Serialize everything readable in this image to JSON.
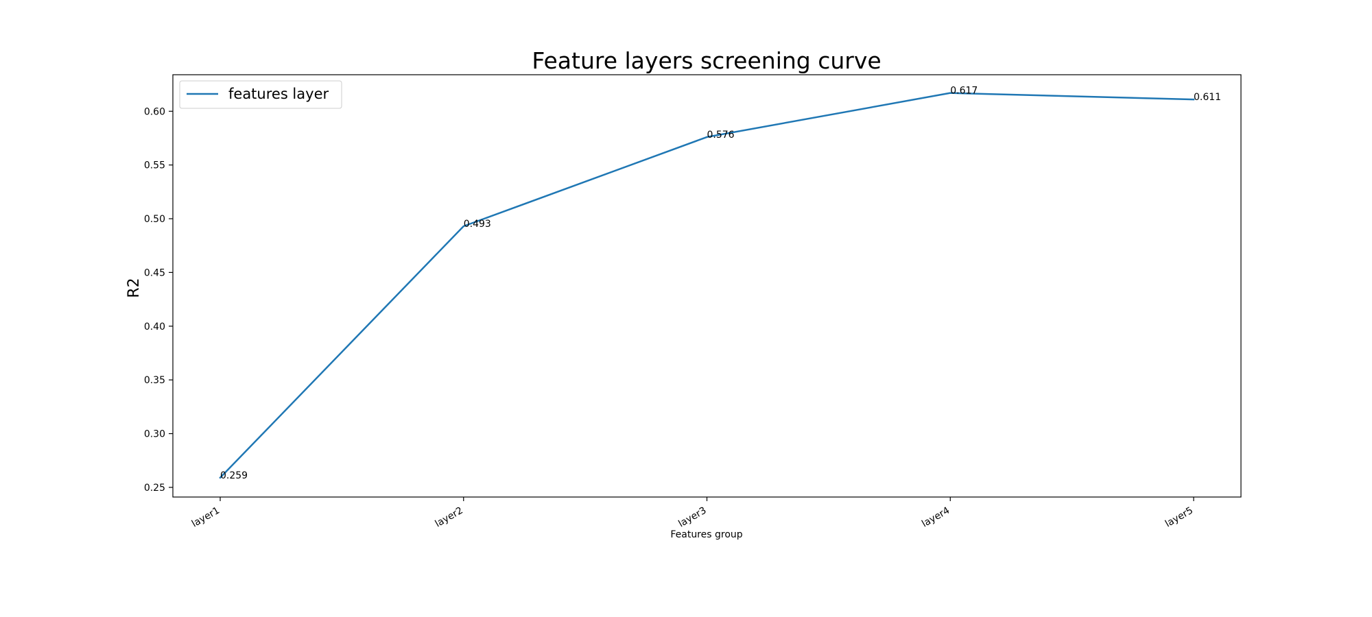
{
  "chart_data": {
    "type": "line",
    "title": "Feature layers screening curve",
    "xlabel": "Features group",
    "ylabel": "R2",
    "categories": [
      "layer1",
      "layer2",
      "layer3",
      "layer4",
      "layer5"
    ],
    "series": [
      {
        "name": "features layer",
        "values": [
          0.259,
          0.493,
          0.576,
          0.617,
          0.611
        ],
        "data_labels": [
          "0.259",
          "0.493",
          "0.576",
          "0.617",
          "0.611"
        ],
        "color": "#1f77b4"
      }
    ],
    "ylim": [
      0.241,
      0.634
    ],
    "yticks": [
      0.25,
      0.3,
      0.35,
      0.4,
      0.45,
      0.5,
      0.55,
      0.6
    ],
    "ytick_labels": [
      "0.25",
      "0.30",
      "0.35",
      "0.40",
      "0.45",
      "0.50",
      "0.55",
      "0.60"
    ],
    "grid": false,
    "legend": "upper-left"
  }
}
